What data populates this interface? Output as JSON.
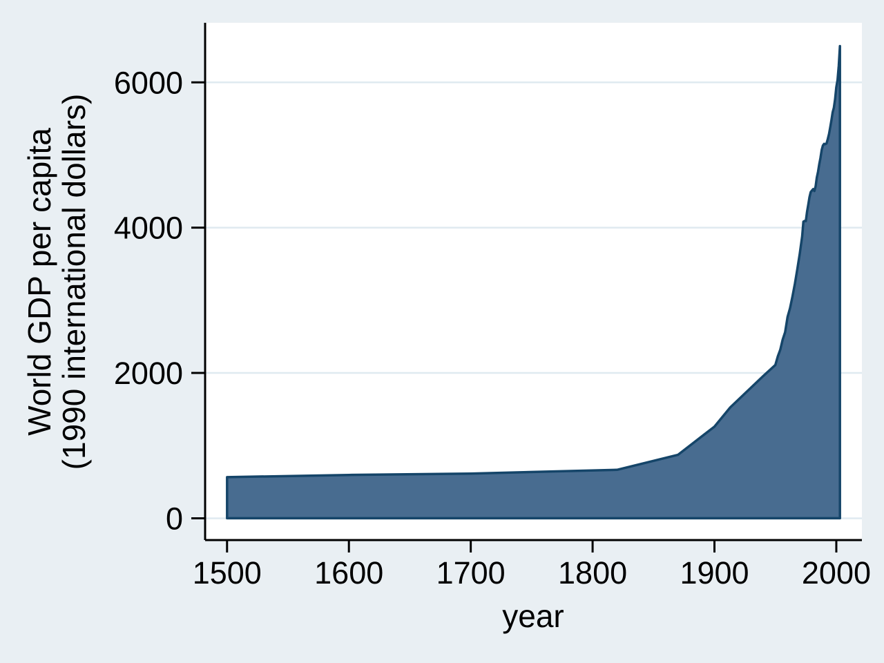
{
  "page": {
    "background_color": "#e9eff3"
  },
  "chart_data": {
    "type": "area",
    "title": "",
    "xlabel": "year",
    "ylabel_lines": [
      "World GDP per capita",
      "(1990 international dollars)"
    ],
    "x_ticks": [
      1500,
      1600,
      1700,
      1800,
      1900,
      2000
    ],
    "y_ticks": [
      0,
      2000,
      4000,
      6000
    ],
    "xlim": [
      1482,
      2021
    ],
    "ylim": [
      -300,
      6820
    ],
    "grid": "horizontal-only",
    "legend_position": "none",
    "colors": {
      "background": "#e9eff3",
      "plot_background": "#ffffff",
      "gridline": "#dfeaf0",
      "area_fill": "#486c90",
      "area_line": "#154569",
      "axis": "#000000"
    },
    "series": [
      {
        "name": "World GDP per capita (1990 international dollars)",
        "points": [
          [
            1500,
            566
          ],
          [
            1600,
            596
          ],
          [
            1700,
            615
          ],
          [
            1820,
            667
          ],
          [
            1870,
            873
          ],
          [
            1900,
            1262
          ],
          [
            1913,
            1526
          ],
          [
            1940,
            1958
          ],
          [
            1950,
            2111
          ],
          [
            1952,
            2230
          ],
          [
            1954,
            2320
          ],
          [
            1956,
            2460
          ],
          [
            1958,
            2560
          ],
          [
            1960,
            2773
          ],
          [
            1962,
            2890
          ],
          [
            1964,
            3050
          ],
          [
            1966,
            3230
          ],
          [
            1968,
            3430
          ],
          [
            1970,
            3640
          ],
          [
            1972,
            3880
          ],
          [
            1973,
            4083
          ],
          [
            1974,
            4093
          ],
          [
            1975,
            4091
          ],
          [
            1976,
            4220
          ],
          [
            1977,
            4320
          ],
          [
            1978,
            4420
          ],
          [
            1979,
            4490
          ],
          [
            1980,
            4512
          ],
          [
            1981,
            4530
          ],
          [
            1982,
            4505
          ],
          [
            1983,
            4570
          ],
          [
            1984,
            4690
          ],
          [
            1985,
            4770
          ],
          [
            1986,
            4870
          ],
          [
            1987,
            4960
          ],
          [
            1988,
            5070
          ],
          [
            1989,
            5130
          ],
          [
            1990,
            5154
          ],
          [
            1991,
            5150
          ],
          [
            1992,
            5160
          ],
          [
            1993,
            5220
          ],
          [
            1994,
            5290
          ],
          [
            1995,
            5380
          ],
          [
            1996,
            5480
          ],
          [
            1997,
            5590
          ],
          [
            1998,
            5650
          ],
          [
            1999,
            5770
          ],
          [
            2000,
            5930
          ],
          [
            2001,
            6030
          ],
          [
            2002,
            6230
          ],
          [
            2003,
            6500
          ]
        ]
      }
    ]
  }
}
